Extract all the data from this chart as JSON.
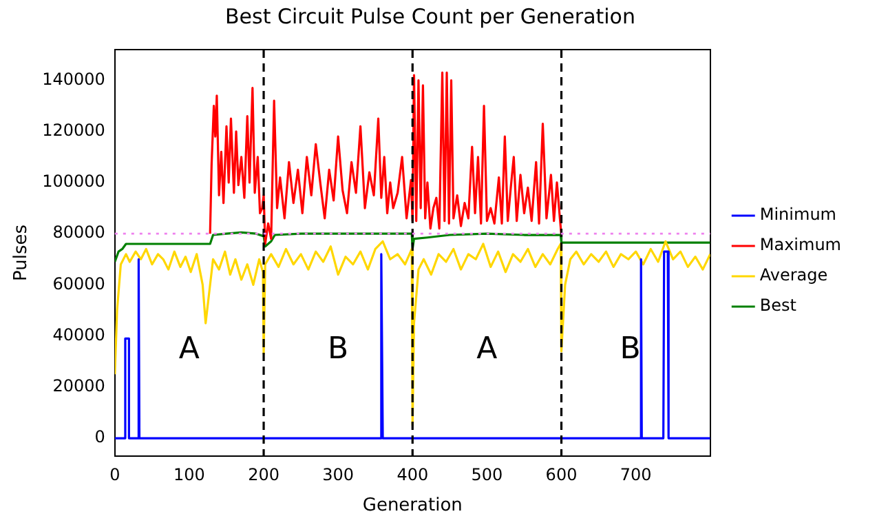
{
  "chart_data": {
    "type": "line",
    "title": "Best Circuit Pulse Count per Generation",
    "xlabel": "Generation",
    "ylabel": "Pulses",
    "xlim": [
      0,
      800
    ],
    "xticks": [
      0,
      100,
      200,
      300,
      400,
      500,
      600,
      700
    ],
    "ylim": [
      -7000,
      152000
    ],
    "yticks": [
      0,
      20000,
      40000,
      60000,
      80000,
      100000,
      120000,
      140000
    ],
    "grid": false,
    "legend": "right",
    "marker": "none",
    "line_style": "solid",
    "series": [
      {
        "name": "Minimum",
        "color": "#0000ff",
        "x": [
          0,
          14,
          14,
          19,
          19,
          31,
          32,
          33,
          357,
          358,
          360,
          706,
          707,
          708,
          737,
          738,
          743,
          744,
          800
        ],
        "values": [
          0,
          0,
          39000,
          39000,
          0,
          0,
          70000,
          0,
          0,
          72000,
          0,
          0,
          70000,
          0,
          0,
          73000,
          73000,
          0,
          0
        ]
      },
      {
        "name": "Maximum",
        "color": "#ff0000",
        "x": [
          128,
          130,
          133,
          135,
          137,
          140,
          143,
          146,
          150,
          153,
          156,
          160,
          163,
          166,
          170,
          174,
          178,
          181,
          185,
          188,
          192,
          195,
          198,
          200,
          202,
          206,
          210,
          214,
          218,
          222,
          228,
          234,
          240,
          246,
          252,
          258,
          264,
          270,
          276,
          282,
          288,
          294,
          300,
          306,
          312,
          318,
          324,
          330,
          336,
          342,
          348,
          354,
          358,
          362,
          366,
          370,
          374,
          380,
          386,
          392,
          398,
          400,
          402,
          405,
          408,
          411,
          414,
          417,
          420,
          424,
          428,
          432,
          436,
          440,
          443,
          446,
          449,
          452,
          455,
          460,
          465,
          470,
          475,
          480,
          484,
          488,
          492,
          496,
          500,
          505,
          510,
          516,
          520,
          524,
          528,
          532,
          536,
          540,
          545,
          550,
          555,
          560,
          566,
          570,
          575,
          580,
          586,
          590,
          594,
          598,
          600
        ],
        "values": [
          80000,
          107000,
          130000,
          118000,
          134000,
          95000,
          112000,
          92000,
          122000,
          100000,
          125000,
          96000,
          120000,
          99000,
          110000,
          94000,
          126000,
          100000,
          137000,
          96000,
          110000,
          88000,
          90000,
          95000,
          76000,
          84000,
          78000,
          132000,
          90000,
          102000,
          86000,
          108000,
          92000,
          105000,
          88000,
          110000,
          95000,
          115000,
          100000,
          86000,
          105000,
          93000,
          118000,
          97000,
          88000,
          108000,
          96000,
          122000,
          90000,
          104000,
          95000,
          125000,
          94000,
          110000,
          88000,
          100000,
          90000,
          96000,
          110000,
          86000,
          101000,
          85000,
          142000,
          85000,
          140000,
          90000,
          138000,
          86000,
          100000,
          82000,
          90000,
          94000,
          82000,
          143000,
          85000,
          143000,
          84000,
          140000,
          86000,
          95000,
          83000,
          92000,
          86000,
          114000,
          88000,
          110000,
          84000,
          130000,
          85000,
          90000,
          84000,
          102000,
          84000,
          118000,
          85000,
          98000,
          110000,
          85000,
          103000,
          88000,
          98000,
          85000,
          108000,
          84000,
          123000,
          86000,
          103000,
          85000,
          100000,
          86000,
          79500
        ]
      },
      {
        "name": "Average",
        "color": "#ffd700",
        "x": [
          0,
          3,
          8,
          15,
          20,
          28,
          35,
          42,
          50,
          58,
          65,
          72,
          80,
          88,
          95,
          102,
          110,
          118,
          122,
          126,
          132,
          140,
          148,
          155,
          162,
          170,
          178,
          186,
          194,
          199,
          200,
          202,
          210,
          220,
          230,
          240,
          250,
          260,
          270,
          280,
          290,
          300,
          310,
          320,
          330,
          340,
          350,
          360,
          370,
          380,
          390,
          399,
          400,
          402,
          408,
          415,
          425,
          435,
          445,
          455,
          465,
          475,
          485,
          495,
          505,
          515,
          525,
          535,
          545,
          555,
          565,
          575,
          585,
          595,
          599,
          600,
          605,
          612,
          620,
          630,
          640,
          650,
          660,
          670,
          680,
          690,
          700,
          710,
          720,
          730,
          740,
          750,
          760,
          770,
          780,
          790,
          800
        ],
        "values": [
          25000,
          50000,
          68000,
          72000,
          69000,
          73000,
          70000,
          74000,
          68000,
          72000,
          70000,
          66000,
          73000,
          67000,
          71000,
          65000,
          72000,
          60000,
          45000,
          55000,
          70000,
          66000,
          73000,
          64000,
          70000,
          62000,
          68000,
          60000,
          70000,
          65000,
          33000,
          68000,
          72000,
          67000,
          74000,
          68000,
          72000,
          66000,
          73000,
          69000,
          75000,
          64000,
          71000,
          68000,
          73000,
          66000,
          74000,
          77000,
          70000,
          72000,
          68000,
          74000,
          5000,
          45000,
          66000,
          70000,
          64000,
          72000,
          69000,
          74000,
          66000,
          72000,
          70000,
          76000,
          67000,
          73000,
          65000,
          72000,
          69000,
          74000,
          67000,
          72000,
          68000,
          74000,
          76000,
          34000,
          60000,
          70000,
          73000,
          68000,
          72000,
          69000,
          73000,
          67000,
          72000,
          70000,
          73000,
          68000,
          74000,
          69000,
          77000,
          70000,
          73000,
          67000,
          71000,
          66000,
          72000
        ]
      },
      {
        "name": "Best",
        "color": "#008000",
        "x": [
          0,
          5,
          10,
          15,
          128,
          132,
          150,
          170,
          190,
          200,
          202,
          210,
          215,
          250,
          300,
          350,
          399,
          400,
          402,
          420,
          450,
          500,
          550,
          599,
          600,
          800
        ],
        "values": [
          69000,
          73000,
          74000,
          76000,
          76000,
          79500,
          80000,
          80500,
          80000,
          79000,
          75000,
          77000,
          79500,
          80000,
          80000,
          80000,
          80000,
          74000,
          78000,
          78500,
          79500,
          80000,
          79500,
          79500,
          76500,
          76500
        ]
      }
    ],
    "ref_lines": [
      {
        "axis": "x",
        "value": 200,
        "color": "#000000",
        "line_style": "dashed"
      },
      {
        "axis": "x",
        "value": 400,
        "color": "#000000",
        "line_style": "dashed"
      },
      {
        "axis": "x",
        "value": 600,
        "color": "#000000",
        "line_style": "dashed"
      },
      {
        "axis": "y",
        "value": 80000,
        "color": "#ee82ee",
        "line_style": "dotted"
      }
    ],
    "annotations": [
      "A",
      "B",
      "A",
      "B"
    ]
  }
}
